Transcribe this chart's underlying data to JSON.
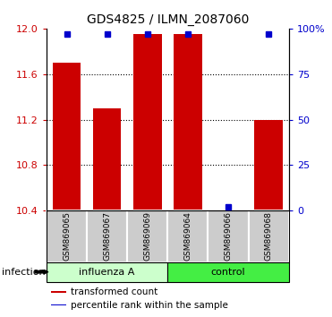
{
  "title": "GDS4825 / ILMN_2087060",
  "samples": [
    "GSM869065",
    "GSM869067",
    "GSM869069",
    "GSM869064",
    "GSM869066",
    "GSM869068"
  ],
  "group_labels": [
    "influenza A",
    "control"
  ],
  "bar_values": [
    11.7,
    11.3,
    11.95,
    11.95,
    10.41,
    11.2
  ],
  "percentile_values": [
    97,
    97,
    97,
    97,
    2,
    97
  ],
  "ylim_left": [
    10.4,
    12.0
  ],
  "ylim_right": [
    0,
    100
  ],
  "yticks_left": [
    10.4,
    10.8,
    11.2,
    11.6,
    12.0
  ],
  "yticks_right": [
    0,
    25,
    50,
    75,
    100
  ],
  "ytick_labels_right": [
    "0",
    "25",
    "50",
    "75",
    "100%"
  ],
  "bar_color": "#cc0000",
  "percentile_color": "#0000cc",
  "bar_width": 0.7,
  "infection_label": "infection",
  "legend_entries": [
    "transformed count",
    "percentile rank within the sample"
  ],
  "legend_colors": [
    "#cc0000",
    "#0000cc"
  ],
  "background_color": "#ffffff",
  "sample_box_color": "#cccccc",
  "inf_color": "#ccffcc",
  "ctrl_color": "#44ee44",
  "figsize": [
    3.71,
    3.54
  ],
  "dpi": 100
}
